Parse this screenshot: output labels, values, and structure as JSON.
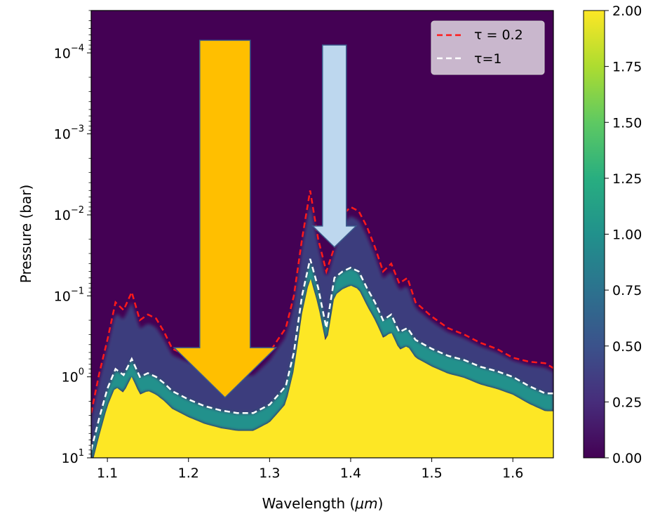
{
  "chart_data": {
    "type": "heatmap",
    "title": "",
    "xlabel": "Wavelength (μm)",
    "ylabel": "Pressure (bar)",
    "xlim": [
      1.08,
      1.65
    ],
    "ylim_bar": [
      10,
      3e-05
    ],
    "y_scale": "log",
    "x_ticks": [
      {
        "value": 1.1,
        "label": "1.1"
      },
      {
        "value": 1.2,
        "label": "1.2"
      },
      {
        "value": 1.3,
        "label": "1.3"
      },
      {
        "value": 1.4,
        "label": "1.4"
      },
      {
        "value": 1.5,
        "label": "1.5"
      },
      {
        "value": 1.6,
        "label": "1.6"
      }
    ],
    "y_ticks": [
      {
        "value": 10,
        "base": "10",
        "exp": "1"
      },
      {
        "value": 1,
        "base": "10",
        "exp": "0"
      },
      {
        "value": 0.1,
        "base": "10",
        "exp": "−1"
      },
      {
        "value": 0.01,
        "base": "10",
        "exp": "−2"
      },
      {
        "value": 0.001,
        "base": "10",
        "exp": "−3"
      },
      {
        "value": 0.0001,
        "base": "10",
        "exp": "−4"
      }
    ],
    "colorbar": {
      "min": 0.0,
      "max": 2.0,
      "colormap": "viridis",
      "ticks": [
        "0.00",
        "0.25",
        "0.50",
        "0.75",
        "1.00",
        "1.25",
        "1.50",
        "1.75",
        "2.00"
      ]
    },
    "grid": false,
    "legend_position": "top-right",
    "series": [
      {
        "name": "τ = 0.2",
        "color": "#ff1a1a",
        "style": "dashed",
        "x": [
          1.08,
          1.09,
          1.1,
          1.11,
          1.12,
          1.13,
          1.14,
          1.15,
          1.16,
          1.17,
          1.18,
          1.2,
          1.22,
          1.24,
          1.26,
          1.28,
          1.3,
          1.31,
          1.32,
          1.33,
          1.34,
          1.35,
          1.36,
          1.37,
          1.38,
          1.39,
          1.4,
          1.41,
          1.42,
          1.43,
          1.44,
          1.45,
          1.46,
          1.47,
          1.48,
          1.5,
          1.52,
          1.54,
          1.56,
          1.58,
          1.6,
          1.62,
          1.64,
          1.65
        ],
        "y": [
          2.8,
          0.9,
          0.35,
          0.12,
          0.15,
          0.09,
          0.2,
          0.17,
          0.19,
          0.28,
          0.45,
          0.55,
          0.6,
          0.7,
          0.78,
          0.8,
          0.5,
          0.35,
          0.25,
          0.1,
          0.02,
          0.005,
          0.02,
          0.05,
          0.025,
          0.01,
          0.008,
          0.009,
          0.014,
          0.025,
          0.05,
          0.04,
          0.07,
          0.06,
          0.12,
          0.18,
          0.25,
          0.3,
          0.38,
          0.45,
          0.58,
          0.65,
          0.68,
          0.78
        ]
      },
      {
        "name": "τ=1",
        "color": "#ffffff",
        "style": "dashed",
        "x": [
          1.08,
          1.09,
          1.1,
          1.11,
          1.12,
          1.13,
          1.14,
          1.15,
          1.16,
          1.17,
          1.18,
          1.2,
          1.22,
          1.24,
          1.26,
          1.28,
          1.3,
          1.31,
          1.32,
          1.33,
          1.34,
          1.35,
          1.36,
          1.37,
          1.38,
          1.39,
          1.4,
          1.41,
          1.42,
          1.43,
          1.44,
          1.45,
          1.46,
          1.47,
          1.48,
          1.5,
          1.52,
          1.54,
          1.56,
          1.58,
          1.6,
          1.62,
          1.64,
          1.65
        ],
        "y": [
          8,
          3.2,
          1.4,
          0.8,
          0.95,
          0.6,
          1.0,
          0.9,
          1.0,
          1.2,
          1.5,
          1.9,
          2.3,
          2.6,
          2.8,
          2.8,
          2.2,
          1.7,
          1.3,
          0.5,
          0.1,
          0.035,
          0.08,
          0.25,
          0.06,
          0.05,
          0.045,
          0.05,
          0.08,
          0.12,
          0.2,
          0.17,
          0.28,
          0.25,
          0.35,
          0.45,
          0.55,
          0.62,
          0.75,
          0.85,
          1.0,
          1.3,
          1.6,
          1.6
        ]
      }
    ],
    "annotations": [
      {
        "type": "arrow",
        "color": "#ffbf00",
        "direction": "down",
        "x_center": 1.245,
        "y_top": 7e-05,
        "y_tip": 1.8
      },
      {
        "type": "arrow",
        "color": "#bdd7ee",
        "direction": "down",
        "x_center": 1.38,
        "y_top": 8e-05,
        "y_tip": 0.025
      }
    ]
  }
}
